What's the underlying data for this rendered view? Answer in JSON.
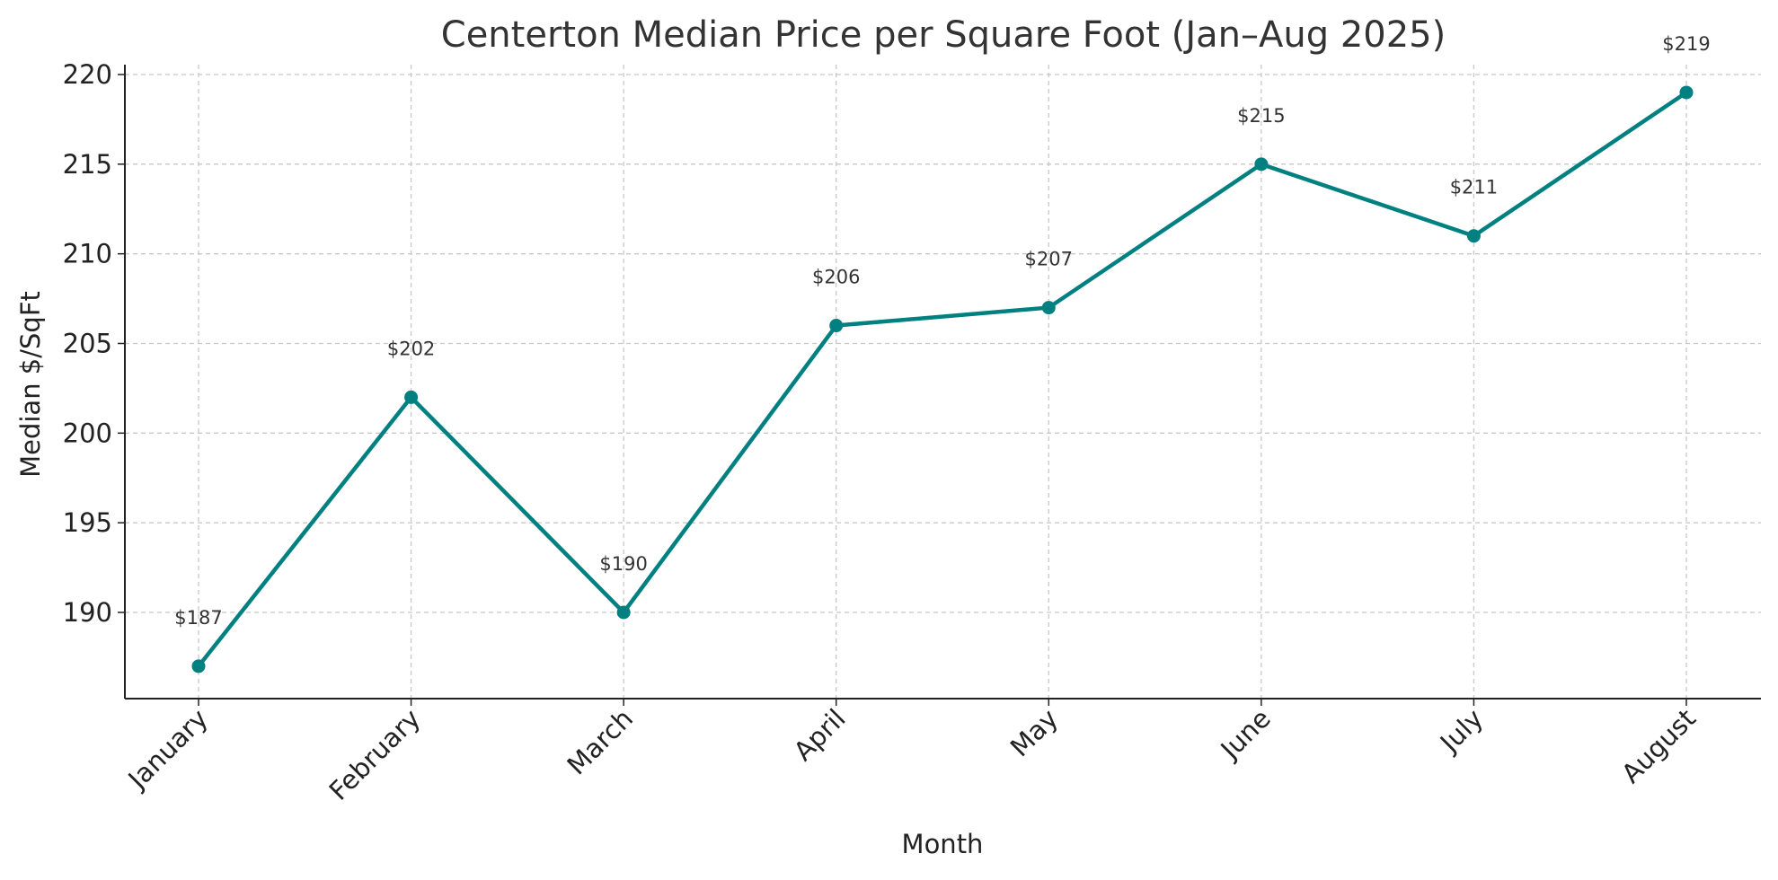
{
  "chart_data": {
    "type": "line",
    "title": "Centerton Median Price per Square Foot (Jan–Aug 2025)",
    "xlabel": "Month",
    "ylabel": "Median $/SqFt",
    "categories": [
      "January",
      "February",
      "March",
      "April",
      "May",
      "June",
      "July",
      "August"
    ],
    "values": [
      187,
      202,
      190,
      206,
      207,
      215,
      211,
      219
    ],
    "data_labels": [
      "$187",
      "$202",
      "$190",
      "$206",
      "$207",
      "$215",
      "$211",
      "$219"
    ],
    "yticks": [
      190,
      195,
      200,
      205,
      210,
      215,
      220
    ],
    "ytick_labels": [
      "190",
      "195",
      "200",
      "205",
      "210",
      "215",
      "220"
    ],
    "ylim": [
      185.4,
      220.6
    ],
    "grid": true,
    "legend": "none",
    "line_color": "#008080"
  }
}
